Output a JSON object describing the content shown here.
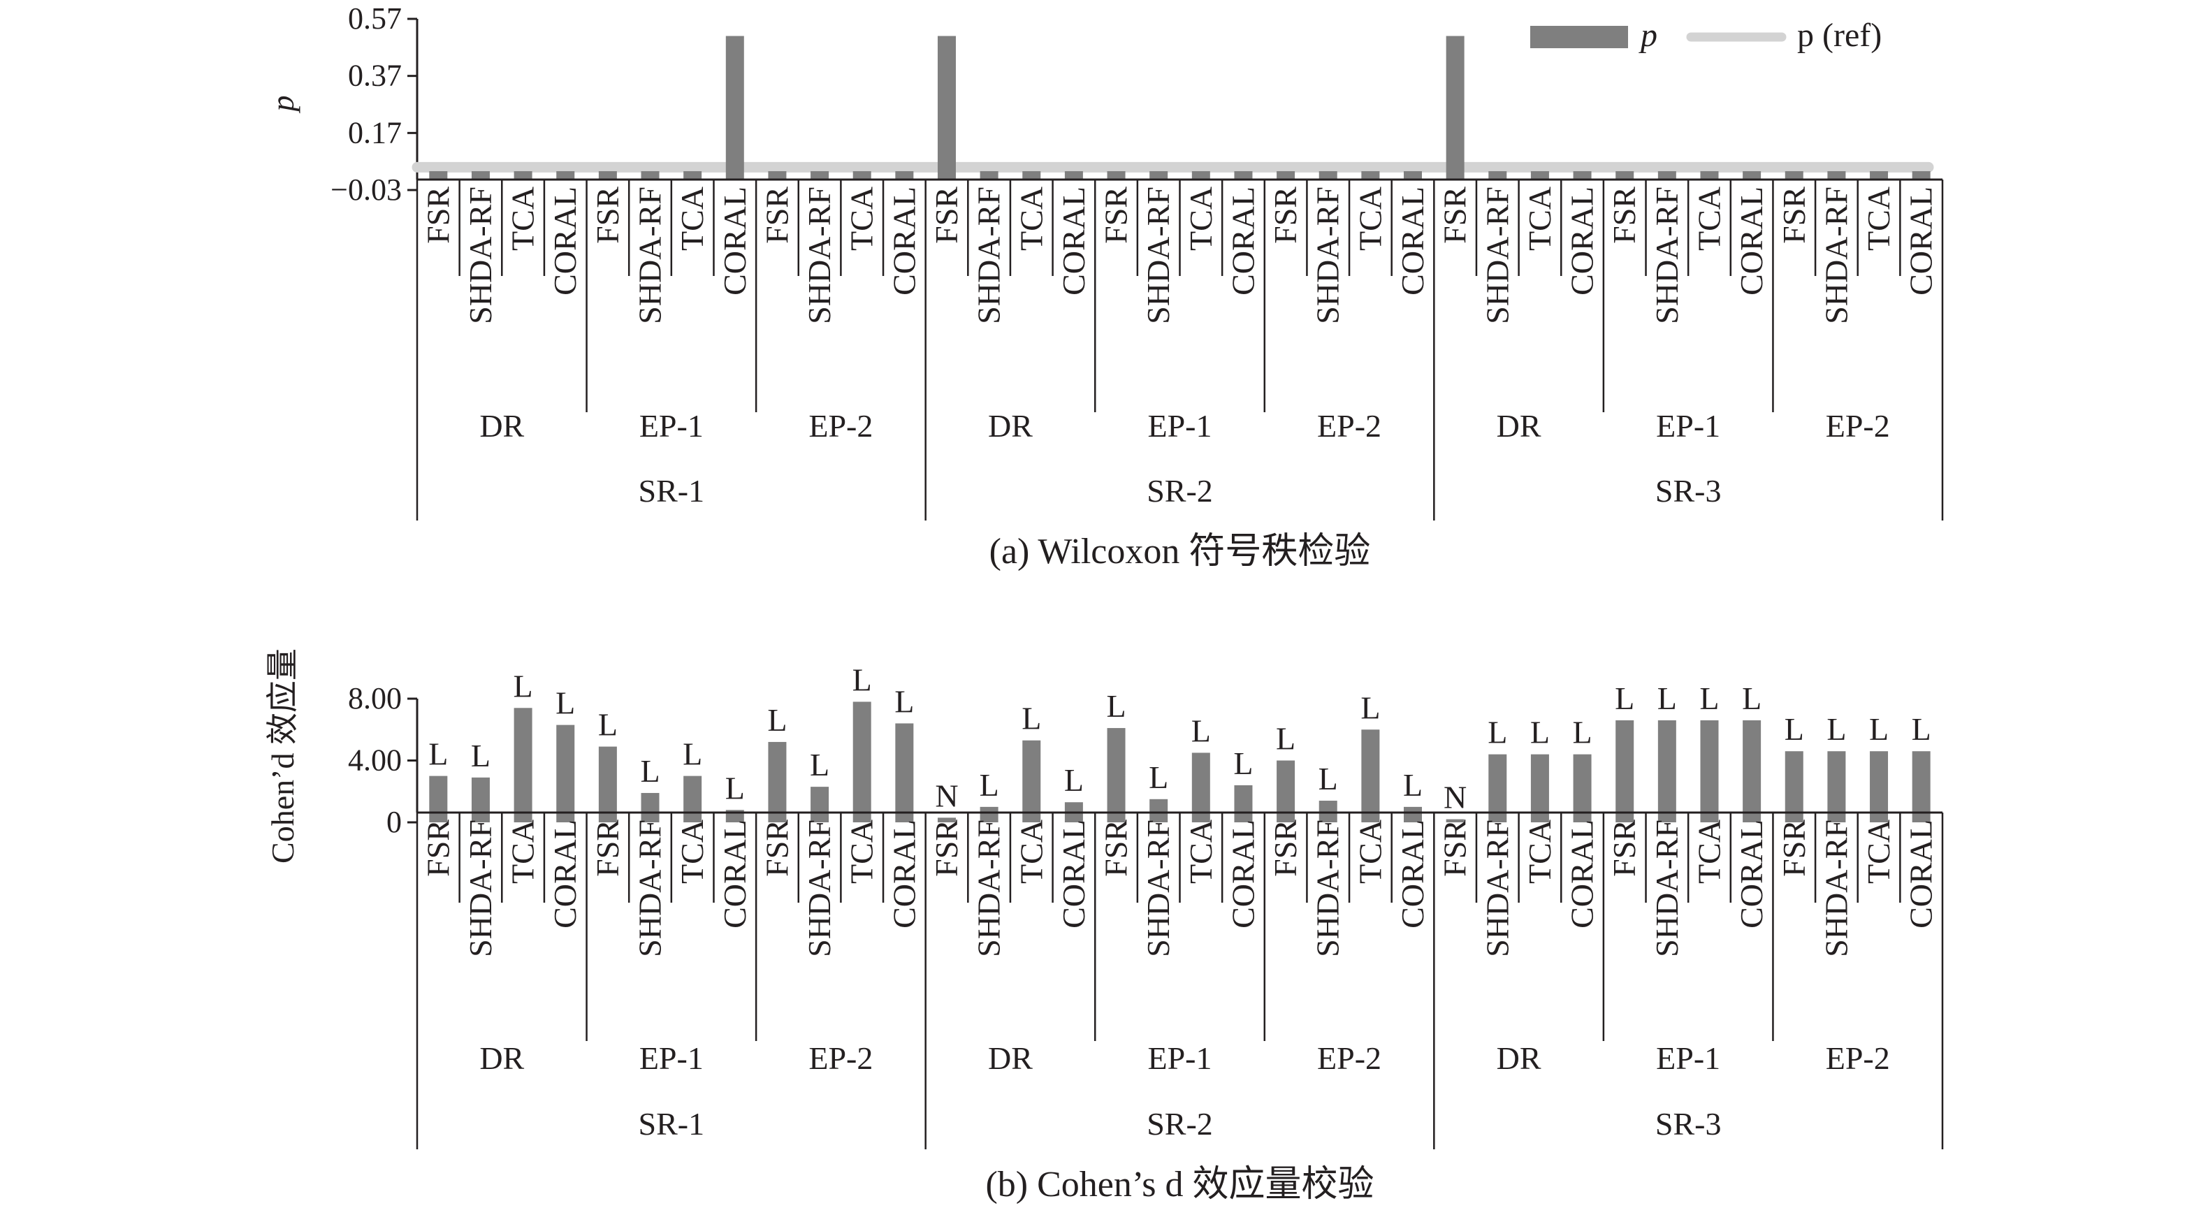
{
  "groups": {
    "methods": [
      "FSR",
      "SHDA-RF",
      "TCA",
      "CORAL"
    ],
    "datasets": [
      "DR",
      "EP-1",
      "EP-2"
    ],
    "sources": [
      "SR-1",
      "SR-2",
      "SR-3"
    ]
  },
  "chart_data": [
    {
      "type": "bar",
      "caption": "(a) Wilcoxon 符号秩检验",
      "ylabel": "p",
      "yticks": [
        "0.57",
        "0.37",
        "0.17",
        "−0.03"
      ],
      "ylim": [
        -0.03,
        0.57
      ],
      "legend": {
        "bar_label": "p",
        "ref_label": "p (ref)",
        "position": "top-right"
      },
      "ref_value": 0.05,
      "bar_color": "#7f7f7f",
      "ref_color": "#d3d3d3",
      "values": [
        0,
        0,
        0,
        0,
        0,
        0,
        0,
        0.51,
        0,
        0,
        0,
        0,
        0.51,
        0,
        0,
        0,
        0,
        0,
        0,
        0,
        0,
        0,
        0,
        0.004,
        0.51,
        0,
        0,
        0,
        0,
        0,
        0,
        0,
        0,
        0,
        0,
        0
      ]
    },
    {
      "type": "bar",
      "caption": "(b) Cohen’s d 效应量校验",
      "ylabel": "Cohen’d 效应量",
      "yticks": [
        "8.00",
        "4.00",
        "0"
      ],
      "ylim": [
        0,
        8
      ],
      "bar_color": "#7f7f7f",
      "values": [
        3.0,
        2.9,
        7.4,
        6.3,
        4.9,
        1.9,
        3.0,
        0.8,
        5.2,
        2.3,
        7.8,
        6.4,
        0.3,
        1.0,
        5.3,
        1.3,
        6.1,
        1.5,
        4.5,
        2.4,
        4.0,
        1.4,
        6.0,
        1.0,
        0.2,
        4.4,
        4.4,
        4.4,
        6.6,
        6.6,
        6.6,
        6.6,
        4.6,
        4.6,
        4.6,
        4.6
      ],
      "data_labels": [
        "L",
        "L",
        "L",
        "L",
        "L",
        "L",
        "L",
        "L",
        "L",
        "L",
        "L",
        "L",
        "N",
        "L",
        "L",
        "L",
        "L",
        "L",
        "L",
        "L",
        "L",
        "L",
        "L",
        "L",
        "N",
        "L",
        "L",
        "L",
        "L",
        "L",
        "L",
        "L",
        "L",
        "L",
        "L",
        "L"
      ]
    }
  ]
}
